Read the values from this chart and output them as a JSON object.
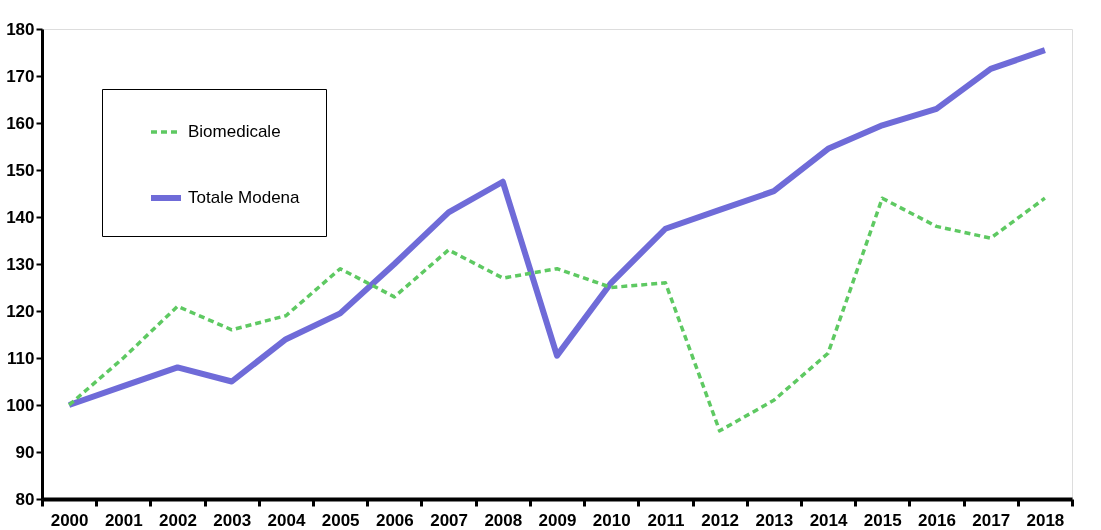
{
  "chart_data": {
    "type": "line",
    "categories": [
      "2000",
      "2001",
      "2002",
      "2003",
      "2004",
      "2005",
      "2006",
      "2007",
      "2008",
      "2009",
      "2010",
      "2011",
      "2012",
      "2013",
      "2014",
      "2015",
      "2016",
      "2017",
      "2018"
    ],
    "series": [
      {
        "name": "Biomedicale",
        "color": "#5ec962",
        "line_style": "dashed",
        "values": [
          100,
          110,
          121,
          116,
          119,
          129,
          123,
          133,
          127,
          129,
          125,
          126,
          94.5,
          101,
          111,
          144,
          138,
          135.5,
          144
        ]
      },
      {
        "name": "Totale Modena",
        "color": "#6f6bd8",
        "line_style": "solid",
        "values": [
          100,
          104,
          108,
          105,
          114,
          119.5,
          130,
          141,
          147.5,
          110.5,
          126,
          137.5,
          141.5,
          145.5,
          154.5,
          159.5,
          163,
          171.5,
          175.5
        ]
      }
    ],
    "ylim": [
      80,
      180
    ],
    "yticks": [
      80,
      90,
      100,
      110,
      120,
      130,
      140,
      150,
      160,
      170,
      180
    ],
    "grid": false,
    "legend": "top left",
    "marker": "none"
  }
}
